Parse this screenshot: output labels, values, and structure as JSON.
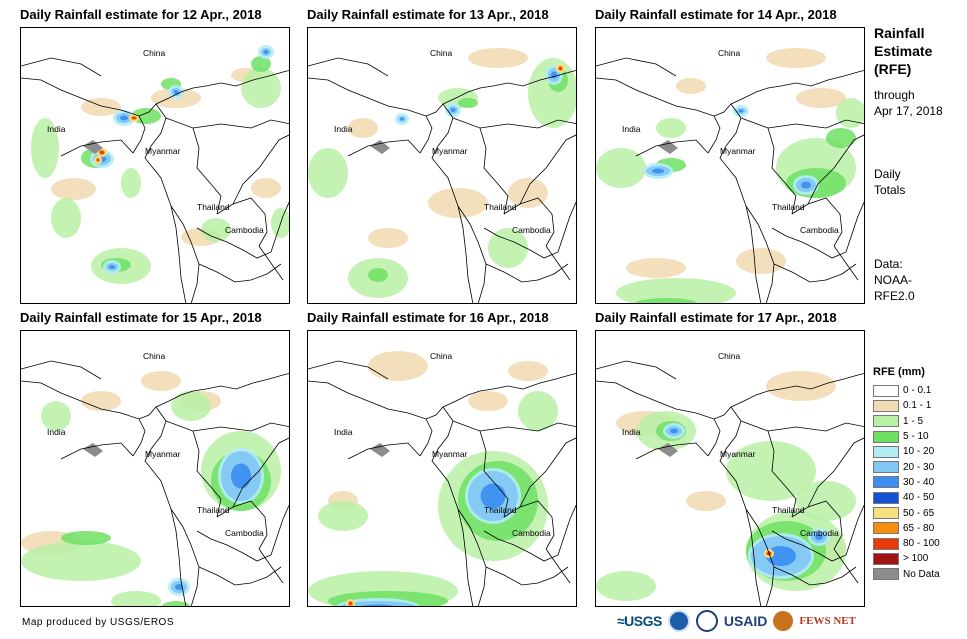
{
  "panels": [
    {
      "title": "Daily Rainfall estimate for 12 Apr., 2018"
    },
    {
      "title": "Daily Rainfall estimate for 13 Apr., 2018"
    },
    {
      "title": "Daily Rainfall estimate for 14 Apr., 2018"
    },
    {
      "title": "Daily Rainfall estimate for 15 Apr., 2018"
    },
    {
      "title": "Daily Rainfall estimate for 16 Apr., 2018"
    },
    {
      "title": "Daily Rainfall estimate for 17 Apr., 2018"
    }
  ],
  "labels": {
    "china": "China",
    "india": "India",
    "myanmar": "Myanmar",
    "thailand": "Thailand",
    "cambodia": "Cambodia"
  },
  "sidebar": {
    "title_line1": "Rainfall",
    "title_line2": "Estimate",
    "title_line3": "(RFE)",
    "through_line1": "through",
    "through_line2": "Apr 17, 2018",
    "daily_line1": "Daily",
    "daily_line2": "Totals",
    "data_line1": "Data:",
    "data_line2": "NOAA-",
    "data_line3": "RFE2.0"
  },
  "legend": {
    "title": "RFE (mm)",
    "items": [
      {
        "label": "0 - 0.1",
        "color": "#ffffff"
      },
      {
        "label": "0.1 - 1",
        "color": "#f2dcb4"
      },
      {
        "label": "1 - 5",
        "color": "#b8f0a6"
      },
      {
        "label": "5 - 10",
        "color": "#6ee063"
      },
      {
        "label": "10 - 20",
        "color": "#b4ecf5"
      },
      {
        "label": "20 - 30",
        "color": "#82c8f5"
      },
      {
        "label": "30 - 40",
        "color": "#3c8ff0"
      },
      {
        "label": "40 - 50",
        "color": "#1450d7"
      },
      {
        "label": "50 - 65",
        "color": "#f8e082"
      },
      {
        "label": "65 - 80",
        "color": "#f58c0a"
      },
      {
        "label": "80 - 100",
        "color": "#e63c0a"
      },
      {
        "label": "> 100",
        "color": "#a01414"
      },
      {
        "label": "No Data",
        "color": "#8c8c8c"
      }
    ]
  },
  "footer": {
    "credit": "Map produced by USGS/EROS",
    "logo_usgs": "≈USGS",
    "logo_usaid": "USAID",
    "logo_fews": "FEWS NET"
  }
}
